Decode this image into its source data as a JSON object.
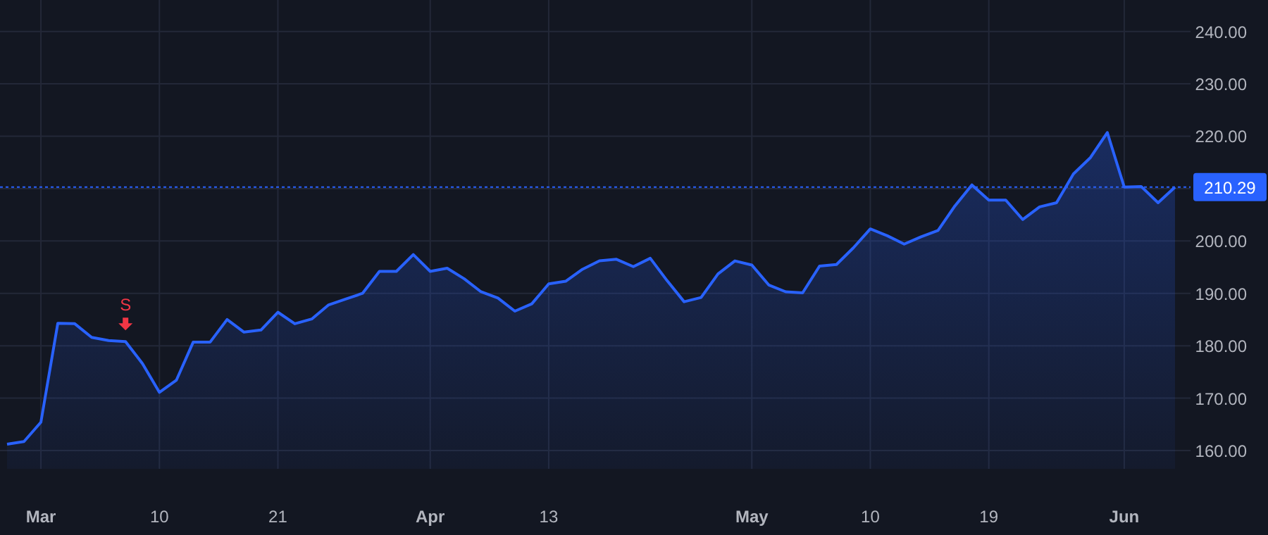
{
  "chart_data": {
    "type": "area",
    "categories": [
      null,
      null,
      "Mar",
      null,
      null,
      null,
      null,
      null,
      null,
      "10",
      null,
      null,
      null,
      null,
      null,
      null,
      "21",
      null,
      null,
      null,
      null,
      null,
      null,
      null,
      null,
      "Apr",
      null,
      null,
      null,
      null,
      null,
      null,
      "13",
      null,
      null,
      null,
      null,
      null,
      null,
      null,
      null,
      null,
      null,
      null,
      "May",
      null,
      null,
      null,
      null,
      null,
      null,
      "10",
      null,
      null,
      null,
      null,
      null,
      null,
      "19",
      null,
      null,
      null,
      null,
      null,
      null,
      null,
      "Jun",
      null,
      null,
      null
    ],
    "series": [
      {
        "color": "#2962ff",
        "values": [
          161.2,
          161.7,
          165.4,
          184.3,
          184.2,
          181.6,
          181.0,
          180.8,
          176.6,
          171.1,
          173.4,
          180.7,
          180.7,
          185.0,
          182.6,
          183.0,
          186.4,
          184.2,
          185.1,
          187.8,
          188.9,
          190.0,
          194.2,
          194.2,
          197.4,
          194.2,
          194.8,
          192.8,
          190.3,
          189.1,
          186.6,
          188.0,
          191.8,
          192.3,
          194.6,
          196.2,
          196.5,
          195.1,
          196.7,
          192.4,
          188.4,
          189.2,
          193.7,
          196.2,
          195.4,
          191.6,
          190.3,
          190.1,
          195.2,
          195.5,
          198.7,
          202.3,
          201.0,
          199.4,
          200.8,
          202.0,
          206.7,
          210.7,
          207.8,
          207.8,
          204.1,
          206.5,
          207.3,
          212.8,
          215.9,
          220.7,
          210.3,
          210.4,
          207.3,
          210.29
        ]
      }
    ],
    "ylim": [
      156.5,
      246
    ],
    "yticks": [
      {
        "value": 160,
        "label": "160.00"
      },
      {
        "value": 170,
        "label": "170.00"
      },
      {
        "value": 180,
        "label": "180.00"
      },
      {
        "value": 190,
        "label": "190.00"
      },
      {
        "value": 200,
        "label": "200.00"
      },
      {
        "value": 210,
        "label": null
      },
      {
        "value": 220,
        "label": "220.00"
      },
      {
        "value": 230,
        "label": "230.00"
      },
      {
        "value": 240,
        "label": "240.00"
      }
    ],
    "grid": true,
    "ref_lines": [
      {
        "axis": "y",
        "value": 210.29,
        "label": "210.29",
        "color": "#2962ff",
        "line_style": "dotted"
      }
    ],
    "annotations": [
      {
        "text": "S",
        "y": 180.8
      }
    ]
  }
}
